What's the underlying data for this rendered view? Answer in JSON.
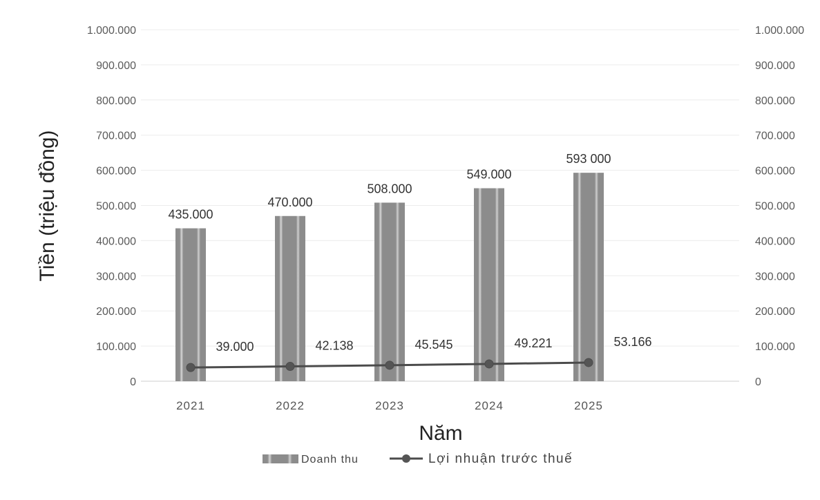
{
  "chart_data": {
    "type": "bar",
    "categories": [
      "2021",
      "2022",
      "2023",
      "2024",
      "2025"
    ],
    "series": [
      {
        "name": "Doanh thu",
        "type": "bar",
        "values": [
          435000,
          470000,
          508000,
          549000,
          593000
        ],
        "data_labels": [
          "435.000",
          "470.000",
          "508.000",
          "549.000",
          "593 000"
        ],
        "color": "#8c8c8c"
      },
      {
        "name": "Lợi nhuận trước thuế",
        "type": "line",
        "values": [
          39000,
          42138,
          45545,
          49221,
          53166
        ],
        "data_labels": [
          "39.000",
          "42.138",
          "45.545",
          "49.221",
          "53.166"
        ],
        "color": "#4b4b4b",
        "marker": "circle"
      }
    ],
    "xlabel": "Năm",
    "ylabel": "Tiền (triệu đồng)",
    "ylim": [
      0,
      1000000
    ],
    "yticks": [
      0,
      100000,
      200000,
      300000,
      400000,
      500000,
      600000,
      700000,
      800000,
      900000,
      1000000
    ],
    "ytick_labels": [
      "0",
      "100.000",
      "200.000",
      "300.000",
      "400.000",
      "500.000",
      "600.000",
      "700.000",
      "800.000",
      "900.000",
      "1.000.000"
    ],
    "secondary_y_axis": {
      "side": "right",
      "ylim": [
        0,
        1000000
      ],
      "ytick_labels": [
        "0",
        "100.000",
        "200.000",
        "300.000",
        "400.000",
        "500.000",
        "600.000",
        "700.000",
        "800.000",
        "900.000",
        "1.000.000"
      ]
    },
    "grid": true,
    "legend_position": "bottom"
  }
}
